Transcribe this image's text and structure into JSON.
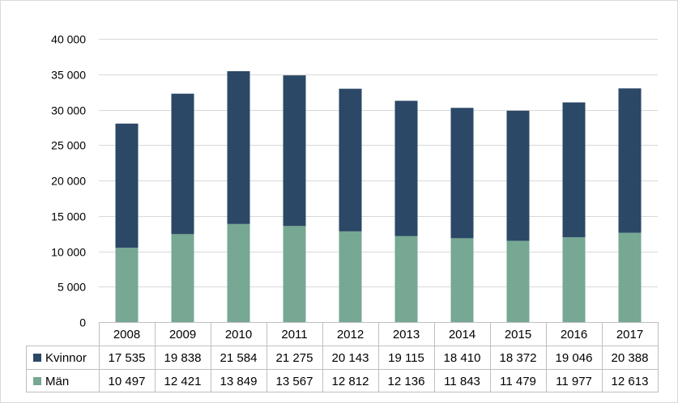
{
  "chart_data": {
    "type": "bar",
    "stacked": true,
    "title": "",
    "xlabel": "",
    "ylabel": "",
    "ylim": [
      0,
      40000
    ],
    "yticks": [
      0,
      5000,
      10000,
      15000,
      20000,
      25000,
      30000,
      35000,
      40000
    ],
    "ytick_labels": [
      "0",
      "5 000",
      "10 000",
      "15 000",
      "20 000",
      "25 000",
      "30 000",
      "35 000",
      "40 000"
    ],
    "grid": true,
    "legend": "data-table",
    "categories": [
      "2008",
      "2009",
      "2010",
      "2011",
      "2012",
      "2013",
      "2014",
      "2015",
      "2016",
      "2017"
    ],
    "series": [
      {
        "name": "Män",
        "color": "#76a893",
        "values": [
          10497,
          12421,
          13849,
          13567,
          12812,
          12136,
          11843,
          11479,
          11977,
          12613
        ],
        "labels": [
          "10 497",
          "12 421",
          "13 849",
          "13 567",
          "12 812",
          "12 136",
          "11 843",
          "11 479",
          "11 977",
          "12 613"
        ]
      },
      {
        "name": "Kvinnor",
        "color": "#2b4866",
        "values": [
          17535,
          19838,
          21584,
          21275,
          20143,
          19115,
          18410,
          18372,
          19046,
          20388
        ],
        "labels": [
          "17 535",
          "19 838",
          "21 584",
          "21 275",
          "20 143",
          "19 115",
          "18 410",
          "18 372",
          "19 046",
          "20 388"
        ]
      }
    ]
  }
}
